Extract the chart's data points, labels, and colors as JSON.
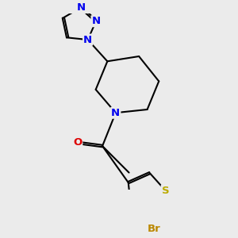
{
  "background_color": "#ebebeb",
  "bond_color": "#000000",
  "bond_width": 1.5,
  "atom_colors": {
    "N": "#0000ee",
    "O": "#dd0000",
    "S": "#bbaa00",
    "Br": "#bb8800",
    "C": "#000000"
  },
  "font_size_atom": 9.5
}
